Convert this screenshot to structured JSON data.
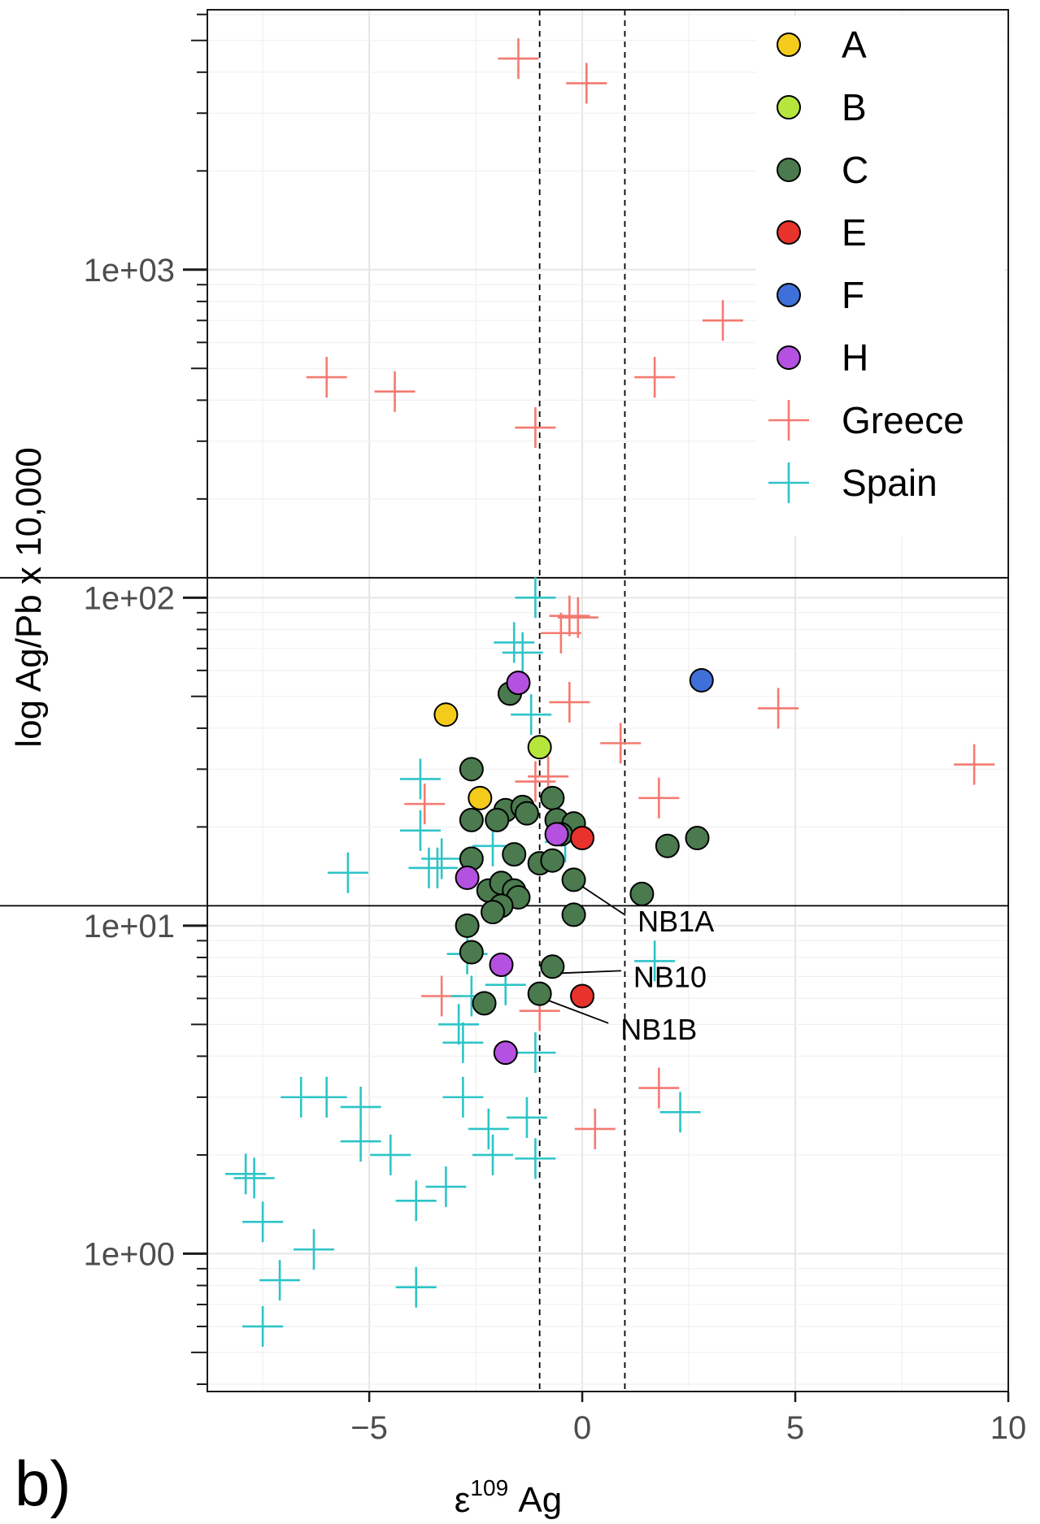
{
  "panel_label": "b)",
  "chart_data": {
    "type": "scatter",
    "xlabel": "ε",
    "xlabel_sup": "109",
    "xlabel_tail": " Ag",
    "ylabel": "log Ag/Pb x 10,000",
    "xlim": [
      -8.8,
      10
    ],
    "ylim": [
      0.38,
      6200
    ],
    "y_scale": "log10",
    "grid": true,
    "x_ticks": [
      -5,
      0,
      5,
      10
    ],
    "x_tick_labels": [
      "−5",
      "0",
      "5",
      "10"
    ],
    "y_ticks": [
      1,
      10,
      100,
      1000
    ],
    "y_tick_labels": [
      "1e+00",
      "1e+01",
      "1e+02",
      "1e+03"
    ],
    "vlines": [
      -1,
      1
    ],
    "hlines": [
      11.5,
      115
    ],
    "legend_position": "top-right",
    "series": [
      {
        "name": "A",
        "marker": "circle",
        "color": "#F5CB1B",
        "points": [
          [
            -3.2,
            44
          ],
          [
            -2.4,
            24.5
          ]
        ]
      },
      {
        "name": "B",
        "marker": "circle",
        "color": "#B6E63B",
        "points": [
          [
            -1,
            35
          ]
        ]
      },
      {
        "name": "C",
        "marker": "circle",
        "color": "#4A7A4E",
        "points": [
          [
            -1.7,
            51
          ],
          [
            -2.6,
            30
          ],
          [
            -2.6,
            21
          ],
          [
            -1.8,
            22.5
          ],
          [
            -1.4,
            23
          ],
          [
            -2,
            21
          ],
          [
            -1.3,
            22
          ],
          [
            -0.7,
            24.5
          ],
          [
            -0.6,
            21
          ],
          [
            -0.2,
            20.5
          ],
          [
            -0.5,
            19
          ],
          [
            -2.6,
            16
          ],
          [
            -1.6,
            16.5
          ],
          [
            -1,
            15.5
          ],
          [
            -0.7,
            15.8
          ],
          [
            -2.2,
            12.8
          ],
          [
            -1.9,
            13.5
          ],
          [
            -1.6,
            12.8
          ],
          [
            -1.5,
            12.2
          ],
          [
            -1.9,
            11.5
          ],
          [
            -2.1,
            11
          ],
          [
            -0.2,
            13.8
          ],
          [
            -0.2,
            10.8
          ],
          [
            1.4,
            12.5
          ],
          [
            2,
            17.5
          ],
          [
            2.7,
            18.5
          ],
          [
            -2.7,
            10
          ],
          [
            -2.6,
            8.3
          ],
          [
            -0.7,
            7.5
          ],
          [
            -1,
            6.2
          ],
          [
            -2.3,
            5.8
          ]
        ]
      },
      {
        "name": "E",
        "marker": "circle",
        "color": "#E8322C",
        "points": [
          [
            0,
            18.5
          ],
          [
            0,
            6.1
          ]
        ]
      },
      {
        "name": "F",
        "marker": "circle",
        "color": "#3F6FD9",
        "points": [
          [
            2.8,
            56
          ]
        ]
      },
      {
        "name": "H",
        "marker": "circle",
        "color": "#B451E0",
        "points": [
          [
            -1.5,
            55
          ],
          [
            -0.6,
            19
          ],
          [
            -2.7,
            14
          ],
          [
            -1.9,
            7.6
          ],
          [
            -1.8,
            4.1
          ]
        ]
      },
      {
        "name": "Greece",
        "marker": "plus",
        "color": "#F47A70",
        "points": [
          [
            -1.5,
            4400
          ],
          [
            0.1,
            3700
          ],
          [
            3.3,
            700
          ],
          [
            -6,
            470
          ],
          [
            -4.4,
            425
          ],
          [
            1.7,
            470
          ],
          [
            -1.1,
            330
          ],
          [
            -0.3,
            88
          ],
          [
            -0.5,
            78
          ],
          [
            -0.1,
            87
          ],
          [
            -0.3,
            48
          ],
          [
            4.6,
            46
          ],
          [
            0.9,
            36
          ],
          [
            9.2,
            31
          ],
          [
            -3.7,
            23.5
          ],
          [
            1.8,
            24.5
          ],
          [
            -1.1,
            27.5
          ],
          [
            -0.8,
            28.5
          ],
          [
            -3.3,
            6.1
          ],
          [
            1.8,
            3.2
          ],
          [
            0.3,
            2.4
          ],
          [
            -1,
            5.5
          ]
        ]
      },
      {
        "name": "Spain",
        "marker": "plus",
        "color": "#2EC4C8",
        "points": [
          [
            -1.1,
            100
          ],
          [
            -1.6,
            73
          ],
          [
            -1.4,
            68
          ],
          [
            -1.2,
            44
          ],
          [
            -3.8,
            28
          ],
          [
            -3.8,
            19.5
          ],
          [
            -3.3,
            16
          ],
          [
            -3.4,
            15
          ],
          [
            -3.6,
            15
          ],
          [
            -5.5,
            14.5
          ],
          [
            -2.1,
            17.5
          ],
          [
            -0.4,
            18
          ],
          [
            1.7,
            7.8
          ],
          [
            -2.7,
            8.2
          ],
          [
            -2.6,
            6.1
          ],
          [
            -1.8,
            6.6
          ],
          [
            -2.9,
            5
          ],
          [
            -2.8,
            4.4
          ],
          [
            -1.1,
            4.1
          ],
          [
            -6.6,
            3
          ],
          [
            -6,
            3
          ],
          [
            -5.2,
            2.8
          ],
          [
            -2.8,
            3
          ],
          [
            -1.3,
            2.6
          ],
          [
            2.3,
            2.7
          ],
          [
            -5.2,
            2.2
          ],
          [
            -4.5,
            2
          ],
          [
            -2.2,
            2.4
          ],
          [
            -2.1,
            2
          ],
          [
            -1.1,
            1.95
          ],
          [
            -7.9,
            1.75
          ],
          [
            -7.7,
            1.7
          ],
          [
            -3.2,
            1.6
          ],
          [
            -3.9,
            1.45
          ],
          [
            -7.5,
            1.25
          ],
          [
            -6.3,
            1.03
          ],
          [
            -7.1,
            0.83
          ],
          [
            -3.9,
            0.79
          ],
          [
            -7.5,
            0.6
          ]
        ]
      }
    ],
    "annotations": [
      {
        "text": "NB1A",
        "point": [
          -0.2,
          13.8
        ],
        "label_at": [
          1.3,
          9.6
        ]
      },
      {
        "text": "NB10",
        "point": [
          -0.7,
          7.5
        ],
        "label_at": [
          1.2,
          6.5
        ]
      },
      {
        "text": "NB1B",
        "point": [
          -1,
          6.2
        ],
        "label_at": [
          0.9,
          4.5
        ]
      }
    ]
  }
}
